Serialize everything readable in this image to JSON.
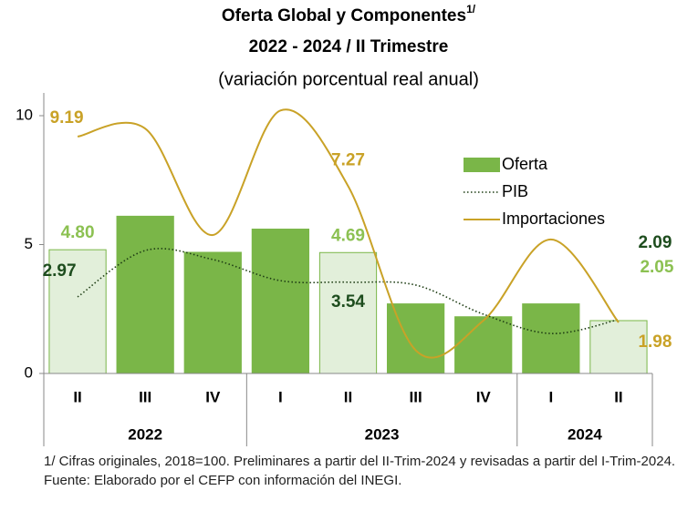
{
  "chart_data": {
    "type": "bar-line",
    "title": "Oferta Global y Componentes",
    "title_note": "1/",
    "subtitle": "2022 - 2024 / II Trimestre",
    "subtitle2": "(variación porcentual real anual)",
    "categories": [
      "II",
      "III",
      "IV",
      "I",
      "II",
      "III",
      "IV",
      "I",
      "II"
    ],
    "groups": [
      {
        "label": "2022",
        "span": 3
      },
      {
        "label": "2023",
        "span": 4
      },
      {
        "label": "2024",
        "span": 2
      }
    ],
    "ylim": [
      0,
      10
    ],
    "yticks": [
      0,
      5,
      10
    ],
    "series": [
      {
        "name": "Oferta",
        "type": "bar",
        "color": "#7ab648",
        "colors": [
          "#e2efda",
          "#7ab648",
          "#7ab648",
          "#7ab648",
          "#e2efda",
          "#7ab648",
          "#7ab648",
          "#7ab648",
          "#e2efda"
        ],
        "label_color": "#8cc152",
        "values": [
          4.8,
          6.1,
          4.7,
          5.6,
          4.69,
          2.7,
          2.2,
          2.7,
          2.05
        ],
        "value_labels": [
          "4.80",
          null,
          null,
          null,
          "4.69",
          null,
          null,
          null,
          "2.05"
        ]
      },
      {
        "name": "PIB",
        "type": "line",
        "style": "dotted",
        "color": "#1e3d14",
        "label_color": "#1e4d1e",
        "values": [
          2.97,
          4.77,
          4.42,
          3.6,
          3.54,
          3.43,
          2.3,
          1.55,
          2.09
        ],
        "value_labels": [
          "2.97",
          null,
          null,
          null,
          "3.54",
          null,
          null,
          null,
          "2.09"
        ]
      },
      {
        "name": "Importaciones",
        "type": "line",
        "style": "solid",
        "color": "#c9a227",
        "label_color": "#c9a227",
        "values": [
          9.19,
          9.5,
          5.37,
          10.2,
          7.27,
          0.9,
          2.05,
          5.2,
          1.98
        ],
        "value_labels": [
          "9.19",
          null,
          null,
          null,
          "7.27",
          null,
          null,
          null,
          "1.98"
        ]
      }
    ],
    "footnotes": [
      "1/ Cifras originales, 2018=100. Preliminares a partir del II-Trim-2024 y revisadas a partir del I-Trim-2024.",
      "Fuente: Elaborado por el CEFP con información del INEGI."
    ]
  }
}
